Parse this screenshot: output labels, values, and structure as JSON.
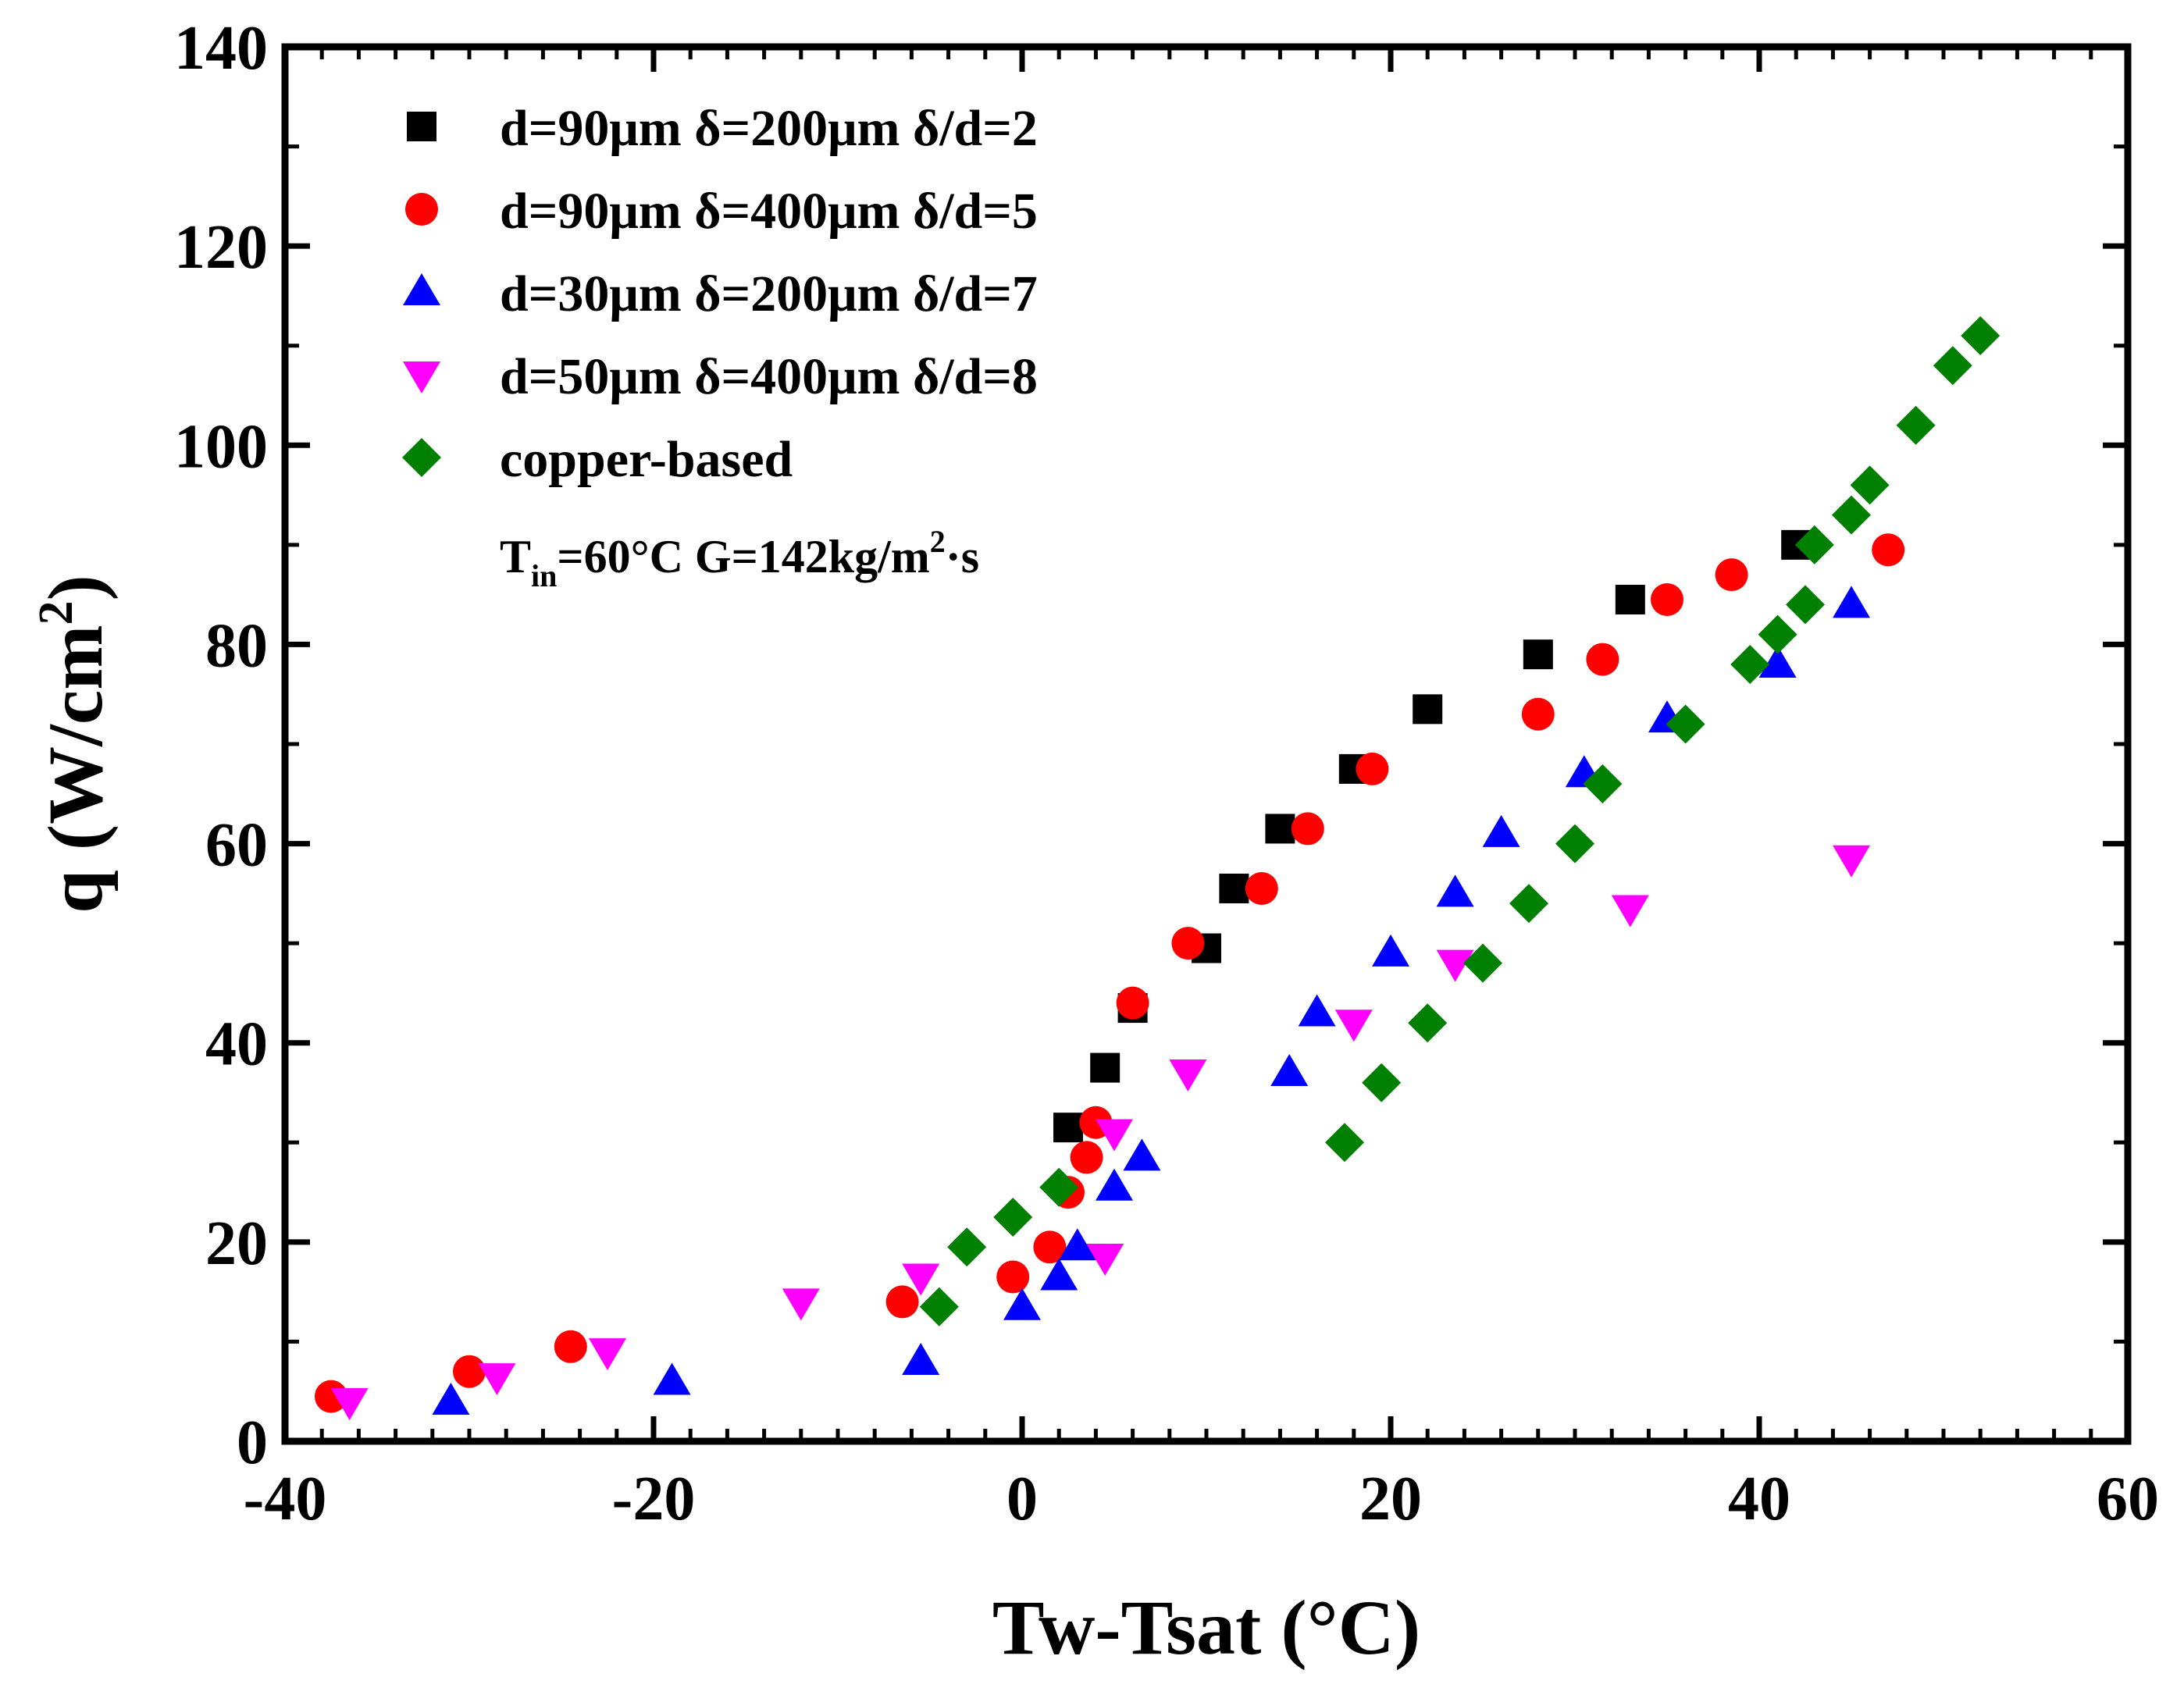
{
  "chart_data": {
    "type": "scatter",
    "title": "",
    "xlabel": "Tw-Tsat (°C)",
    "ylabel_main": "q (W/cm",
    "ylabel_sup": "2",
    "ylabel_close": ")",
    "xlim": [
      -40,
      60
    ],
    "ylim": [
      0,
      140
    ],
    "xticks": [
      -40,
      -20,
      0,
      20,
      40,
      60
    ],
    "xtick_labels": [
      "-40",
      "-20",
      "0",
      "20",
      "40",
      "60"
    ],
    "yticks": [
      0,
      20,
      40,
      60,
      80,
      100,
      120,
      140
    ],
    "ytick_labels": [
      "0",
      "20",
      "40",
      "60",
      "80",
      "100",
      "120",
      "140"
    ],
    "grid": false,
    "legend_position": "top-left",
    "annotation": {
      "t": "T",
      "in": "in",
      "rest": "=60°C   G=142kg/m",
      "sup": "2",
      "tail": "·s"
    },
    "series": [
      {
        "name": "d=90μm  δ=200μm δ/d=2",
        "marker": "square",
        "color": "#000000",
        "x": [
          2.5,
          4.5,
          6,
          10,
          11.5,
          14,
          18,
          22,
          28,
          33,
          42
        ],
        "y": [
          31.5,
          37.5,
          43.5,
          49.5,
          55.5,
          61.5,
          67.5,
          73.5,
          79,
          84.5,
          90
        ]
      },
      {
        "name": "d=90μm  δ=400μm δ/d=5",
        "marker": "circle",
        "color": "#ff0000",
        "x": [
          -37.5,
          -30,
          -24.5,
          -6.5,
          -0.5,
          1.5,
          2.5,
          3.5,
          4,
          6,
          9,
          13,
          15.5,
          19,
          28,
          31.5,
          35,
          38.5,
          47
        ],
        "y": [
          4.5,
          7,
          9.5,
          14,
          16.5,
          19.5,
          25,
          28.5,
          32,
          44,
          50,
          55.5,
          61.5,
          67.5,
          73,
          78.5,
          84.5,
          87,
          89.5
        ]
      },
      {
        "name": "d=30μm  δ=200μm δ/d=7",
        "marker": "triangle-up",
        "color": "#0000ff",
        "x": [
          -31,
          -19,
          -5.5,
          0,
          2,
          3,
          5,
          6.5,
          14.5,
          16,
          20,
          23.5,
          26,
          30.5,
          35,
          41,
          45
        ],
        "y": [
          4,
          6,
          8,
          13.5,
          16.5,
          19.5,
          25.5,
          28.5,
          37,
          43,
          49,
          55,
          61,
          67,
          72.5,
          78,
          84
        ]
      },
      {
        "name": "d=50μm  δ=400μm δ/d=8",
        "marker": "triangle-down",
        "color": "#ff00ff",
        "x": [
          -36.5,
          -28.5,
          -22.5,
          -12,
          -5.5,
          4.5,
          5,
          9,
          18,
          23.5,
          33,
          45
        ],
        "y": [
          4,
          6.5,
          9,
          14,
          16.5,
          18.5,
          31,
          37,
          42,
          48,
          53.5,
          58.5
        ]
      },
      {
        "name": "copper-based",
        "marker": "diamond",
        "color": "#008000",
        "x": [
          -4.5,
          -3,
          -0.5,
          2,
          17.5,
          19.5,
          22,
          25,
          27.5,
          30,
          31.5,
          36,
          39.5,
          41,
          42.5,
          43,
          45,
          46,
          48.5,
          50.5,
          52
        ],
        "y": [
          13.5,
          19.5,
          22.5,
          25.5,
          30,
          36,
          42,
          48,
          54,
          60,
          66,
          72,
          78,
          81,
          84,
          90,
          93,
          96,
          102,
          108,
          111
        ]
      }
    ]
  }
}
